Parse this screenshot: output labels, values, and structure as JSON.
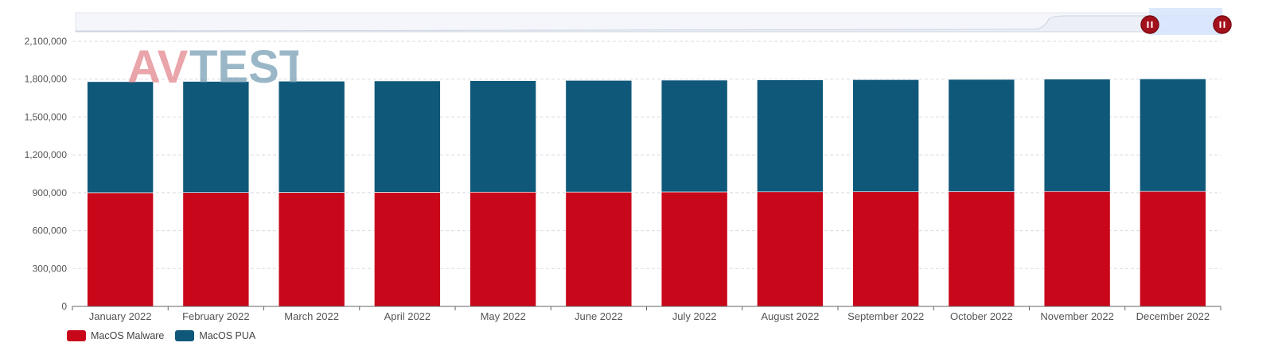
{
  "logo": {
    "text_av": "AV",
    "text_test": "TEST"
  },
  "colors": {
    "malware": "#c8081a",
    "pua": "#0f587a",
    "grid": "#d8dbe2",
    "axis": "#666666",
    "zoom_track": "#f4f6fb",
    "zoom_window": "#d6e4fb",
    "zoom_handle": "#a3111c"
  },
  "zoom_slider": {
    "handle_icon": "pause-icon"
  },
  "chart_data": {
    "type": "bar",
    "stacked": true,
    "categories": [
      "January 2022",
      "February 2022",
      "March 2022",
      "April 2022",
      "May 2022",
      "June 2022",
      "July 2022",
      "August 2022",
      "September 2022",
      "October 2022",
      "November 2022",
      "December 2022"
    ],
    "series": [
      {
        "name": "MacOS Malware",
        "color": "#c8081a",
        "values": [
          900000,
          901000,
          902000,
          903000,
          904000,
          905000,
          906000,
          907000,
          908000,
          909000,
          910000,
          911000
        ]
      },
      {
        "name": "MacOS PUA",
        "color": "#0f587a",
        "values": [
          880000,
          881000,
          882000,
          883000,
          884000,
          885000,
          886000,
          887000,
          888000,
          889000,
          890000,
          891000
        ]
      }
    ],
    "y_ticks": [
      "0",
      "300,000",
      "600,000",
      "900,000",
      "1,200,000",
      "1,500,000",
      "1,800,000",
      "2,100,000"
    ],
    "ylim": [
      0,
      2100000
    ],
    "grid": true,
    "legend_position": "bottom-left"
  }
}
